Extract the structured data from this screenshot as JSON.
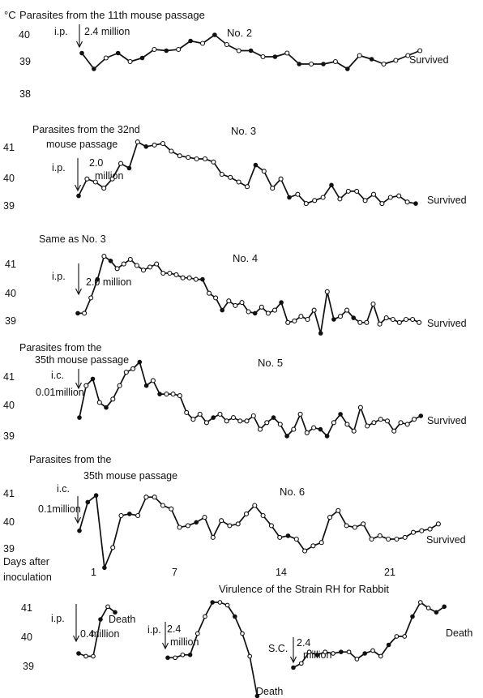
{
  "chart_data": [
    {
      "type": "line",
      "panel": "No. 2",
      "title": "No. 2",
      "unit_label": "°C",
      "annotation": "Parasites from the 11th mouse passage",
      "route": "i.p.",
      "dose": "2.4 million",
      "outcome": "Survived",
      "yticks": [
        "40",
        "39",
        "38"
      ],
      "ylim": [
        38,
        40
      ],
      "x": [
        0,
        1,
        2,
        3,
        4,
        5,
        6,
        7,
        8,
        9,
        10,
        11,
        12,
        13,
        14,
        15,
        16,
        17,
        18,
        19,
        20,
        21,
        22,
        23,
        24,
        25,
        26,
        27,
        28
      ],
      "values": [
        39.25,
        38.6,
        39.05,
        39.25,
        38.9,
        39.05,
        39.4,
        39.35,
        39.4,
        39.75,
        39.65,
        40.0,
        39.6,
        39.35,
        39.35,
        39.1,
        39.1,
        39.25,
        38.8,
        38.8,
        38.8,
        38.9,
        38.6,
        39.15,
        39.0,
        38.8,
        38.95,
        39.15,
        39.35
      ],
      "markers": [
        "f",
        "f",
        "o",
        "f",
        "o",
        "f",
        "o",
        "f",
        "o",
        "f",
        "o",
        "f",
        "o",
        "o",
        "f",
        "o",
        "f",
        "o",
        "f",
        "o",
        "f",
        "o",
        "f",
        "o",
        "f",
        "o",
        "o",
        "o",
        "o"
      ]
    },
    {
      "type": "line",
      "panel": "No. 3",
      "title": "No. 3",
      "annotation_line1": "Parasites from the 32nd",
      "annotation_line2": "mouse passage",
      "route": "i.p.",
      "dose_line1": "2.0",
      "dose_line2": "million",
      "outcome": "Survived",
      "yticks": [
        "41",
        "40",
        "39"
      ],
      "ylim": [
        39,
        41
      ],
      "x": [
        0,
        1,
        2,
        3,
        4,
        5,
        6,
        7,
        8,
        9,
        10,
        11,
        12,
        13,
        14,
        15,
        16,
        17,
        18,
        19,
        20,
        21,
        22,
        23,
        24,
        25,
        26,
        27,
        28,
        29,
        30,
        31,
        32,
        33,
        34,
        35,
        36,
        37,
        38,
        39,
        40
      ],
      "values": [
        39.3,
        39.85,
        39.75,
        39.55,
        39.85,
        40.35,
        40.2,
        41.05,
        40.9,
        40.95,
        41.0,
        40.75,
        40.6,
        40.55,
        40.5,
        40.5,
        40.4,
        40.0,
        39.9,
        39.75,
        39.6,
        40.3,
        40.1,
        39.55,
        39.85,
        39.25,
        39.35,
        39.05,
        39.15,
        39.25,
        39.65,
        39.2,
        39.45,
        39.45,
        39.15,
        39.35,
        39.05,
        39.25,
        39.3,
        39.1,
        39.05
      ],
      "markers": [
        "f",
        "o",
        "o",
        "o",
        "o",
        "o",
        "f",
        "o",
        "f",
        "o",
        "o",
        "o",
        "o",
        "o",
        "o",
        "o",
        "o",
        "o",
        "o",
        "o",
        "o",
        "f",
        "o",
        "o",
        "o",
        "f",
        "o",
        "o",
        "o",
        "o",
        "f",
        "o",
        "o",
        "o",
        "o",
        "o",
        "o",
        "o",
        "o",
        "o",
        "f"
      ]
    },
    {
      "type": "line",
      "panel": "No. 4",
      "title": "No. 4",
      "annotation": "Same as No. 3",
      "route": "i.p.",
      "dose": "2.0 million",
      "outcome": "Survived",
      "yticks": [
        "41",
        "40",
        "39"
      ],
      "ylim": [
        39,
        41
      ],
      "x": [
        0,
        1,
        2,
        3,
        4,
        5,
        6,
        7,
        8,
        9,
        10,
        11,
        12,
        13,
        14,
        15,
        16,
        17,
        18,
        19,
        20,
        21,
        22,
        23,
        24,
        25,
        26,
        27,
        28,
        29,
        30,
        31,
        32,
        33,
        34,
        35,
        36,
        37,
        38,
        39,
        40,
        41,
        42,
        43,
        44,
        45,
        46,
        47,
        48,
        49,
        50,
        51,
        52
      ],
      "values": [
        39.2,
        39.2,
        39.7,
        40.3,
        41.05,
        40.9,
        40.65,
        40.8,
        40.95,
        40.75,
        40.6,
        40.7,
        40.8,
        40.5,
        40.5,
        40.45,
        40.35,
        40.35,
        40.3,
        40.3,
        39.85,
        39.7,
        39.3,
        39.6,
        39.45,
        39.55,
        39.25,
        39.2,
        39.4,
        39.2,
        39.3,
        39.55,
        38.9,
        38.95,
        39.1,
        39.0,
        39.3,
        38.55,
        39.9,
        39.0,
        39.1,
        39.3,
        39.05,
        38.9,
        38.9,
        39.5,
        38.85,
        39.05,
        39.0,
        38.9,
        39.0,
        39.0,
        38.9
      ],
      "markers": [
        "f",
        "o",
        "o",
        "f",
        "o",
        "f",
        "o",
        "o",
        "o",
        "o",
        "o",
        "o",
        "o",
        "o",
        "o",
        "o",
        "o",
        "o",
        "o",
        "f",
        "o",
        "o",
        "f",
        "o",
        "o",
        "o",
        "o",
        "f",
        "o",
        "o",
        "o",
        "f",
        "o",
        "o",
        "o",
        "o",
        "o",
        "f",
        "o",
        "f",
        "o",
        "o",
        "f",
        "o",
        "o",
        "o",
        "o",
        "o",
        "o",
        "o",
        "o",
        "o",
        "o"
      ]
    },
    {
      "type": "line",
      "panel": "No. 5",
      "title": "No. 5",
      "annotation_line1": "Parasites from the",
      "annotation_line2": "35th mouse passage",
      "route": "i.c.",
      "dose": "0.01million",
      "outcome": "Survived",
      "yticks": [
        "41",
        "40",
        "39"
      ],
      "ylim": [
        39,
        41
      ],
      "x": [
        0,
        1,
        2,
        3,
        4,
        5,
        6,
        7,
        8,
        9,
        10,
        11,
        12,
        13,
        14,
        15,
        16,
        17,
        18,
        19,
        20,
        21,
        22,
        23,
        24,
        25,
        26,
        27,
        28,
        29,
        30,
        31,
        32,
        33,
        34,
        35,
        36,
        37,
        38,
        39,
        40,
        41,
        42,
        43,
        44,
        45,
        46,
        47,
        48,
        49,
        50,
        51
      ],
      "values": [
        39.6,
        40.55,
        40.75,
        40.05,
        39.9,
        40.15,
        40.55,
        40.95,
        41.05,
        41.25,
        40.55,
        40.7,
        40.3,
        40.3,
        40.3,
        40.25,
        39.75,
        39.55,
        39.7,
        39.45,
        39.6,
        39.7,
        39.5,
        39.6,
        39.5,
        39.5,
        39.65,
        39.25,
        39.45,
        39.6,
        39.4,
        39.05,
        39.25,
        39.7,
        39.15,
        39.3,
        39.25,
        39.05,
        39.45,
        39.7,
        39.4,
        39.2,
        39.9,
        39.35,
        39.45,
        39.55,
        39.5,
        39.2,
        39.45,
        39.4,
        39.55,
        39.65
      ],
      "markers": [
        "f",
        "o",
        "f",
        "o",
        "f",
        "o",
        "o",
        "o",
        "o",
        "f",
        "f",
        "o",
        "f",
        "o",
        "o",
        "o",
        "o",
        "o",
        "o",
        "o",
        "f",
        "o",
        "o",
        "o",
        "o",
        "o",
        "o",
        "o",
        "o",
        "f",
        "o",
        "f",
        "o",
        "o",
        "o",
        "o",
        "f",
        "f",
        "o",
        "f",
        "o",
        "o",
        "o",
        "o",
        "o",
        "o",
        "o",
        "o",
        "o",
        "o",
        "o",
        "f"
      ]
    },
    {
      "type": "line",
      "panel": "No. 6",
      "title": "No. 6",
      "annotation_line1": "Parasites from the",
      "annotation_line2": "35th mouse passage",
      "route": "i.c.",
      "dose": "0.1million",
      "outcome": "Survived",
      "yticks": [
        "41",
        "40",
        "39"
      ],
      "ylim": [
        39,
        41
      ],
      "x": [
        0,
        1,
        2,
        3,
        4,
        5,
        6,
        7,
        8,
        9,
        10,
        11,
        12,
        13,
        14,
        15,
        16,
        17,
        18,
        19,
        20,
        21,
        22,
        23,
        24,
        25,
        26,
        27,
        28,
        29,
        30,
        31,
        32,
        33,
        34,
        35,
        36,
        37,
        38,
        39,
        40,
        41,
        42,
        43
      ],
      "values": [
        39.9,
        40.75,
        40.95,
        38.8,
        39.4,
        40.35,
        40.4,
        40.35,
        40.9,
        40.9,
        40.65,
        40.55,
        40.0,
        40.05,
        40.15,
        40.3,
        39.7,
        40.2,
        40.05,
        40.1,
        40.4,
        40.65,
        40.35,
        40.05,
        39.7,
        39.75,
        39.65,
        39.3,
        39.45,
        39.55,
        40.3,
        40.5,
        40.05,
        40.0,
        40.1,
        39.65,
        39.75,
        39.65,
        39.65,
        39.7,
        39.85,
        39.9,
        39.95,
        40.1
      ],
      "markers": [
        "f",
        "f",
        "f",
        "f",
        "o",
        "o",
        "f",
        "o",
        "o",
        "o",
        "o",
        "o",
        "o",
        "o",
        "f",
        "o",
        "o",
        "o",
        "o",
        "o",
        "o",
        "o",
        "o",
        "o",
        "o",
        "f",
        "o",
        "o",
        "o",
        "o",
        "o",
        "o",
        "o",
        "o",
        "o",
        "o",
        "o",
        "o",
        "o",
        "o",
        "o",
        "o",
        "o",
        "o"
      ]
    }
  ],
  "day_axis": {
    "label_line1": "Days after",
    "label_line2": "inoculation",
    "ticks": [
      "1",
      "7",
      "14",
      "21"
    ]
  },
  "rabbit_panel": {
    "title": "Virulence of the Strain RH for Rabbit",
    "yticks": [
      "41",
      "40",
      "39"
    ],
    "ylim": [
      39,
      41
    ],
    "curves": [
      {
        "route": "i.p.",
        "dose_line1": "0.4",
        "dose_line2": "million",
        "outcome": "Death",
        "values": [
          39.4,
          39.3,
          39.3,
          40.6,
          41.05,
          40.85
        ]
      },
      {
        "route": "i.p.",
        "dose_line1": "2.4",
        "dose_line2": "million",
        "outcome": "Death",
        "values": [
          39.25,
          39.25,
          39.35,
          39.35,
          40.1,
          40.7,
          41.2,
          41.2,
          41.1,
          40.7,
          40.1,
          39.3,
          37.9
        ]
      },
      {
        "route": "S.C.",
        "dose_line1": "2.4",
        "dose_line2": "million",
        "outcome": "Death",
        "values": [
          38.9,
          39.05,
          39.45,
          39.35,
          39.45,
          39.4,
          39.45,
          39.45,
          39.2,
          39.4,
          39.5,
          39.3,
          39.7,
          40.0,
          40.0,
          40.7,
          41.2,
          41.0,
          40.85,
          41.05
        ]
      }
    ]
  }
}
